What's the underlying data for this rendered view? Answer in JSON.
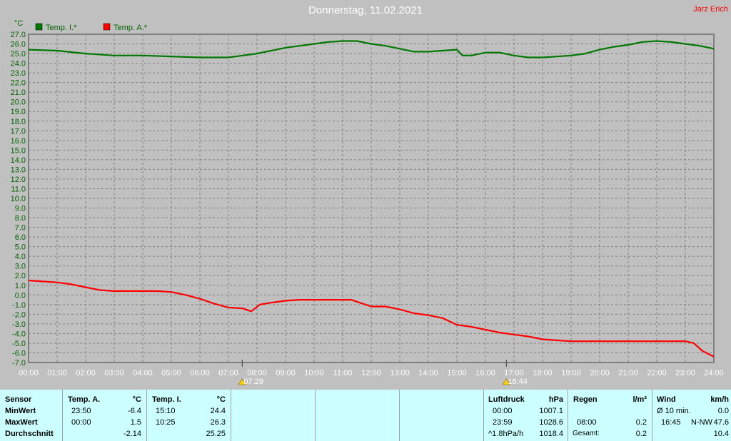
{
  "header": {
    "title": "Donnerstag, 11.02.2021",
    "author": "Jarz Erich"
  },
  "chart_data": {
    "type": "line",
    "yunit": "°C",
    "ylim": [
      -7.0,
      27.0
    ],
    "yticks": [
      "27.0",
      "26.0",
      "25.0",
      "24.0",
      "23.0",
      "22.0",
      "21.0",
      "20.0",
      "19.0",
      "18.0",
      "17.0",
      "16.0",
      "15.0",
      "14.0",
      "13.0",
      "12.0",
      "11.0",
      "10.0",
      "9.0",
      "8.0",
      "7.0",
      "6.0",
      "5.0",
      "4.0",
      "3.0",
      "2.0",
      "1.0",
      "0.0",
      "-1.0",
      "-2.0",
      "-3.0",
      "-4.0",
      "-5.0",
      "-6.0",
      "-7.0"
    ],
    "xticks": [
      "00:00",
      "01:00",
      "02:00",
      "03:00",
      "04:00",
      "05:00",
      "06:00",
      "07:00",
      "08:00",
      "09:00",
      "10:00",
      "11:00",
      "12:00",
      "13:00",
      "14:00",
      "15:00",
      "16:00",
      "17:00",
      "18:00",
      "19:00",
      "20:00",
      "21:00",
      "22:00",
      "23:00",
      "24:00"
    ],
    "grid": true,
    "legend_position": "top-left",
    "series": [
      {
        "name": "Temp. I.*",
        "color": "#007800",
        "points": [
          [
            0,
            25.4
          ],
          [
            1,
            25.3
          ],
          [
            2,
            25.0
          ],
          [
            3,
            24.8
          ],
          [
            4,
            24.8
          ],
          [
            5,
            24.7
          ],
          [
            6,
            24.6
          ],
          [
            7,
            24.6
          ],
          [
            7.5,
            24.8
          ],
          [
            8,
            25.0
          ],
          [
            8.5,
            25.3
          ],
          [
            9,
            25.6
          ],
          [
            9.5,
            25.8
          ],
          [
            10,
            26.0
          ],
          [
            10.5,
            26.2
          ],
          [
            11,
            26.3
          ],
          [
            11.5,
            26.3
          ],
          [
            12,
            26.0
          ],
          [
            12.5,
            25.8
          ],
          [
            13,
            25.5
          ],
          [
            13.5,
            25.2
          ],
          [
            14,
            25.2
          ],
          [
            14.5,
            25.3
          ],
          [
            15,
            25.4
          ],
          [
            15.2,
            24.8
          ],
          [
            15.5,
            24.8
          ],
          [
            16,
            25.1
          ],
          [
            16.5,
            25.1
          ],
          [
            17,
            24.8
          ],
          [
            17.5,
            24.6
          ],
          [
            18,
            24.6
          ],
          [
            19,
            24.8
          ],
          [
            19.5,
            25.0
          ],
          [
            20,
            25.4
          ],
          [
            20.5,
            25.7
          ],
          [
            21,
            25.9
          ],
          [
            21.5,
            26.2
          ],
          [
            22,
            26.3
          ],
          [
            22.5,
            26.2
          ],
          [
            23,
            26.0
          ],
          [
            23.5,
            25.8
          ],
          [
            24,
            25.5
          ]
        ]
      },
      {
        "name": "Temp. A.*",
        "color": "#ff0000",
        "points": [
          [
            0,
            1.5
          ],
          [
            0.5,
            1.4
          ],
          [
            1,
            1.3
          ],
          [
            1.5,
            1.1
          ],
          [
            2,
            0.8
          ],
          [
            2.5,
            0.5
          ],
          [
            3,
            0.4
          ],
          [
            3.5,
            0.4
          ],
          [
            4,
            0.4
          ],
          [
            4.5,
            0.4
          ],
          [
            5,
            0.3
          ],
          [
            5.5,
            0.0
          ],
          [
            6,
            -0.4
          ],
          [
            6.5,
            -0.9
          ],
          [
            7,
            -1.3
          ],
          [
            7.5,
            -1.4
          ],
          [
            7.8,
            -1.7
          ],
          [
            8.1,
            -1.0
          ],
          [
            8.5,
            -0.8
          ],
          [
            9,
            -0.6
          ],
          [
            9.5,
            -0.5
          ],
          [
            10,
            -0.5
          ],
          [
            10.5,
            -0.5
          ],
          [
            11,
            -0.5
          ],
          [
            11.3,
            -0.5
          ],
          [
            11.7,
            -0.9
          ],
          [
            12,
            -1.2
          ],
          [
            12.5,
            -1.2
          ],
          [
            13,
            -1.5
          ],
          [
            13.5,
            -1.9
          ],
          [
            14,
            -2.1
          ],
          [
            14.5,
            -2.4
          ],
          [
            15,
            -3.1
          ],
          [
            15.5,
            -3.3
          ],
          [
            16,
            -3.6
          ],
          [
            16.5,
            -3.9
          ],
          [
            17,
            -4.1
          ],
          [
            17.5,
            -4.3
          ],
          [
            18,
            -4.6
          ],
          [
            18.5,
            -4.7
          ],
          [
            19,
            -4.8
          ],
          [
            19.5,
            -4.8
          ],
          [
            20,
            -4.8
          ],
          [
            20.5,
            -4.8
          ],
          [
            21,
            -4.8
          ],
          [
            21.5,
            -4.8
          ],
          [
            22,
            -4.8
          ],
          [
            22.5,
            -4.8
          ],
          [
            23,
            -4.8
          ],
          [
            23.3,
            -5.0
          ],
          [
            23.6,
            -5.8
          ],
          [
            24,
            -6.4
          ]
        ]
      }
    ],
    "annotations": [
      {
        "label": "07:29",
        "hour": 7.483,
        "icon": "sunrise-icon"
      },
      {
        "label": "16:44",
        "hour": 16.733,
        "icon": "sunset-icon"
      }
    ]
  },
  "table": {
    "sensor": {
      "header": "Sensor",
      "rows": [
        "MinWert",
        "MaxWert",
        "Durchschnitt"
      ]
    },
    "temp_a": {
      "header": "Temp. A.",
      "unit": "°C",
      "min_time": "23:50",
      "min": "-6.4",
      "max_time": "00:00",
      "max": "1.5",
      "avg": "-2.14"
    },
    "temp_i": {
      "header": "Temp. I.",
      "unit": "°C",
      "min_time": "15:10",
      "min": "24.4",
      "max_time": "10:25",
      "max": "26.3",
      "avg": "25.25"
    },
    "pressure": {
      "header": "Luftdruck",
      "unit": "hPa",
      "min_time": "00:00",
      "min": "1007.1",
      "max_time": "23:59",
      "max": "1028.6",
      "trend": "^1.8hPa/h",
      "avg": "1018.4"
    },
    "rain": {
      "header": "Regen",
      "unit": "l/m²",
      "time": "08:00",
      "value": "0.2",
      "total_label": "Gesamt:",
      "total": "0.2"
    },
    "wind": {
      "header": "Wind",
      "unit": "km/h",
      "avg_label": "Ø 10 min.",
      "avg": "0.0",
      "max_time": "16:45",
      "max_dir": "N-NW",
      "max": "47.6",
      "last": "10.4"
    }
  }
}
